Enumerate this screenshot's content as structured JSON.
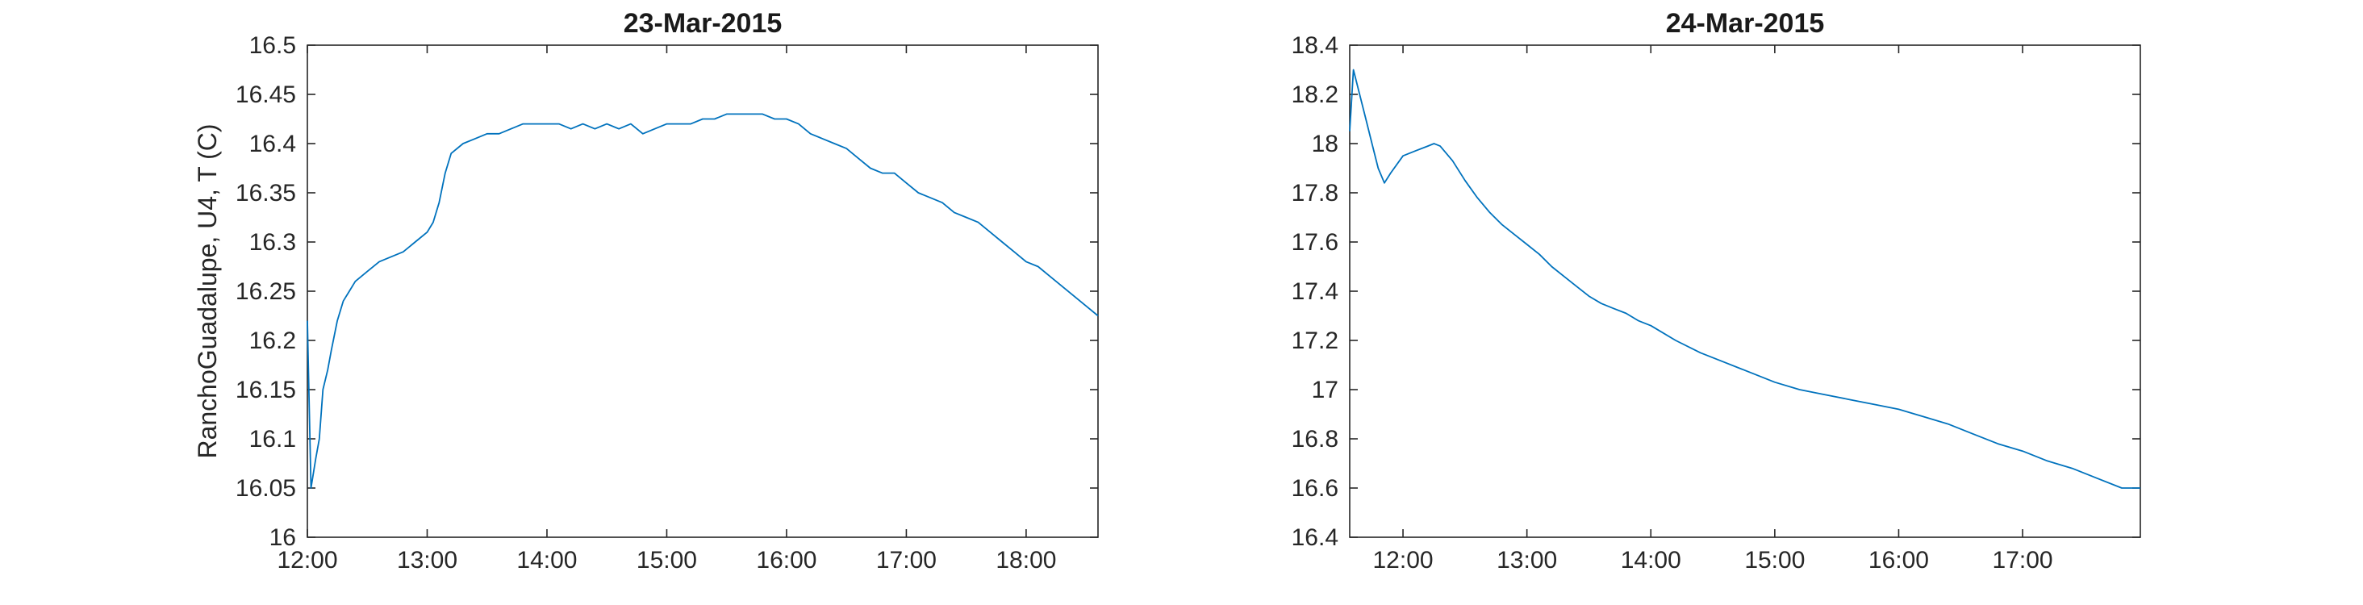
{
  "chart_data": [
    {
      "type": "line",
      "title": "23-Mar-2015",
      "ylabel": "RanchoGuadalupe, U4, T (C)",
      "xlabel": "",
      "x_unit": "hours",
      "xlim": [
        12.0,
        18.6
      ],
      "ylim": [
        16.0,
        16.5
      ],
      "xticks": [
        12,
        13,
        14,
        15,
        16,
        17,
        18
      ],
      "xtick_labels": [
        "12:00",
        "13:00",
        "14:00",
        "15:00",
        "16:00",
        "17:00",
        "18:00"
      ],
      "yticks": [
        16.0,
        16.05,
        16.1,
        16.15,
        16.2,
        16.25,
        16.3,
        16.35,
        16.4,
        16.45,
        16.5
      ],
      "ytick_labels": [
        "16",
        "16.05",
        "16.1",
        "16.15",
        "16.2",
        "16.25",
        "16.3",
        "16.35",
        "16.4",
        "16.45",
        "16.5"
      ],
      "grid": false,
      "series": [
        {
          "color": "#0072bd",
          "x": [
            12.0,
            12.03,
            12.07,
            12.1,
            12.13,
            12.17,
            12.2,
            12.25,
            12.3,
            12.35,
            12.4,
            12.5,
            12.6,
            12.7,
            12.8,
            12.9,
            13.0,
            13.05,
            13.1,
            13.15,
            13.2,
            13.3,
            13.4,
            13.5,
            13.6,
            13.7,
            13.8,
            13.9,
            14.0,
            14.1,
            14.2,
            14.3,
            14.4,
            14.5,
            14.6,
            14.7,
            14.8,
            14.9,
            15.0,
            15.1,
            15.2,
            15.3,
            15.4,
            15.5,
            15.6,
            15.7,
            15.8,
            15.9,
            16.0,
            16.1,
            16.2,
            16.3,
            16.4,
            16.5,
            16.6,
            16.7,
            16.8,
            16.9,
            17.0,
            17.1,
            17.2,
            17.3,
            17.4,
            17.5,
            17.6,
            17.7,
            17.8,
            17.9,
            18.0,
            18.1,
            18.2,
            18.3,
            18.4,
            18.5,
            18.6
          ],
          "y": [
            16.22,
            16.05,
            16.08,
            16.1,
            16.15,
            16.17,
            16.19,
            16.22,
            16.24,
            16.25,
            16.26,
            16.27,
            16.28,
            16.285,
            16.29,
            16.3,
            16.31,
            16.32,
            16.34,
            16.37,
            16.39,
            16.4,
            16.405,
            16.41,
            16.41,
            16.415,
            16.42,
            16.42,
            16.42,
            16.42,
            16.415,
            16.42,
            16.415,
            16.42,
            16.415,
            16.42,
            16.41,
            16.415,
            16.42,
            16.42,
            16.42,
            16.425,
            16.425,
            16.43,
            16.43,
            16.43,
            16.43,
            16.425,
            16.425,
            16.42,
            16.41,
            16.405,
            16.4,
            16.395,
            16.385,
            16.375,
            16.37,
            16.37,
            16.36,
            16.35,
            16.345,
            16.34,
            16.33,
            16.325,
            16.32,
            16.31,
            16.3,
            16.29,
            16.28,
            16.275,
            16.265,
            16.255,
            16.245,
            16.235,
            16.225
          ]
        }
      ]
    },
    {
      "type": "line",
      "title": "24-Mar-2015",
      "ylabel": "",
      "xlabel": "",
      "x_unit": "hours",
      "xlim": [
        11.57,
        17.95
      ],
      "ylim": [
        16.4,
        18.4
      ],
      "xticks": [
        12,
        13,
        14,
        15,
        16,
        17
      ],
      "xtick_labels": [
        "12:00",
        "13:00",
        "14:00",
        "15:00",
        "16:00",
        "17:00"
      ],
      "yticks": [
        16.4,
        16.6,
        16.8,
        17.0,
        17.2,
        17.4,
        17.6,
        17.8,
        18.0,
        18.2,
        18.4
      ],
      "ytick_labels": [
        "16.4",
        "16.6",
        "16.8",
        "17",
        "17.2",
        "17.4",
        "17.6",
        "17.8",
        "18",
        "18.2",
        "18.4"
      ],
      "grid": false,
      "series": [
        {
          "color": "#0072bd",
          "x": [
            11.57,
            11.6,
            11.65,
            11.7,
            11.75,
            11.8,
            11.85,
            11.9,
            12.0,
            12.1,
            12.2,
            12.25,
            12.3,
            12.4,
            12.5,
            12.6,
            12.7,
            12.8,
            12.9,
            13.0,
            13.1,
            13.2,
            13.3,
            13.4,
            13.5,
            13.6,
            13.7,
            13.8,
            13.9,
            14.0,
            14.2,
            14.4,
            14.6,
            14.8,
            15.0,
            15.2,
            15.4,
            15.6,
            15.8,
            16.0,
            16.2,
            16.4,
            16.6,
            16.8,
            17.0,
            17.2,
            17.4,
            17.6,
            17.8,
            17.95
          ],
          "y": [
            18.05,
            18.3,
            18.2,
            18.1,
            18.0,
            17.9,
            17.84,
            17.88,
            17.95,
            17.97,
            17.99,
            18.0,
            17.99,
            17.93,
            17.85,
            17.78,
            17.72,
            17.67,
            17.63,
            17.59,
            17.55,
            17.5,
            17.46,
            17.42,
            17.38,
            17.35,
            17.33,
            17.31,
            17.28,
            17.26,
            17.2,
            17.15,
            17.11,
            17.07,
            17.03,
            17.0,
            16.98,
            16.96,
            16.94,
            16.92,
            16.89,
            16.86,
            16.82,
            16.78,
            16.75,
            16.71,
            16.68,
            16.64,
            16.6,
            16.6
          ]
        }
      ]
    }
  ]
}
